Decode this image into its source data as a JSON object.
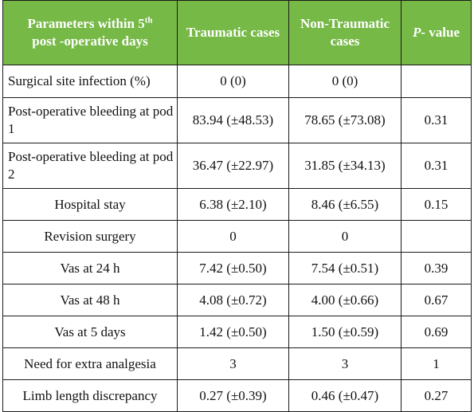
{
  "table": {
    "headers": {
      "col1_main": "Parameters within 5",
      "col1_sup": "th",
      "col1_line2": "post -operative days",
      "col2": "Traumatic cases",
      "col3": "Non-Traumatic cases",
      "col4_italic": "P-",
      "col4_rest": " value"
    },
    "rows": [
      {
        "param": "Surgical site infection (%)",
        "traumatic": "0 (0)",
        "non_traumatic": "0 (0)",
        "p": ""
      },
      {
        "param": "Post-operative bleeding at pod 1",
        "traumatic": "83.94 (±48.53)",
        "non_traumatic": "78.65 (±73.08)",
        "p": "0.31"
      },
      {
        "param": "Post-operative bleeding at pod 2",
        "traumatic": "36.47 (±22.97)",
        "non_traumatic": "31.85 (±34.13)",
        "p": "0.31"
      },
      {
        "param": "Hospital stay",
        "traumatic": "6.38 (±2.10)",
        "non_traumatic": "8.46 (±6.55)",
        "p": "0.15"
      },
      {
        "param": "Revision surgery",
        "traumatic": "0",
        "non_traumatic": "0",
        "p": ""
      },
      {
        "param": "Vas at 24 h",
        "traumatic": "7.42 (±0.50)",
        "non_traumatic": "7.54 (±0.51)",
        "p": "0.39"
      },
      {
        "param": "Vas at 48 h",
        "traumatic": "4.08 (±0.72)",
        "non_traumatic": "4.00 (±0.66)",
        "p": "0.67"
      },
      {
        "param": "Vas at 5 days",
        "traumatic": "1.42 (±0.50)",
        "non_traumatic": "1.50 (±0.59)",
        "p": "0.69"
      },
      {
        "param": "Need for extra analgesia",
        "traumatic": "3",
        "non_traumatic": "3",
        "p": "1"
      },
      {
        "param": "Limb length discrepancy",
        "traumatic": "0.27 (±0.39)",
        "non_traumatic": "0.46 (±0.47)",
        "p": "0.27"
      }
    ],
    "colors": {
      "header_bg": "#76b947",
      "header_text": "#ffffff",
      "border": "#1a1a1a"
    }
  }
}
